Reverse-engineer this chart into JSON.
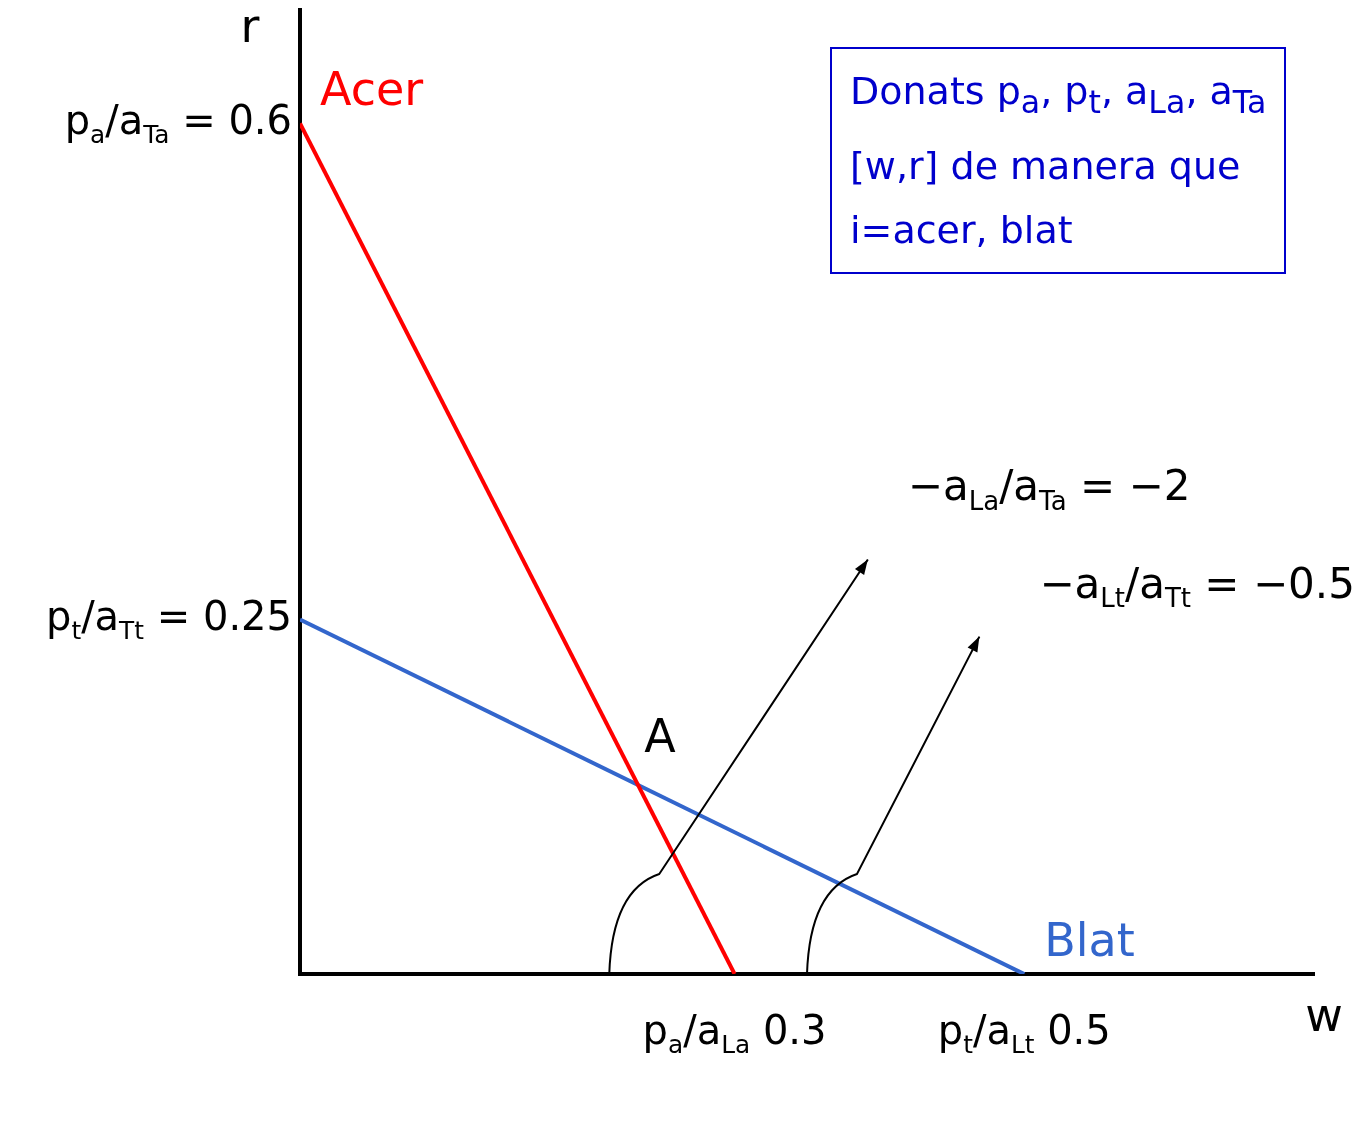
{
  "chart_data": {
    "type": "line",
    "xlabel": "w",
    "ylabel": "r",
    "series": [
      {
        "name": "Acer",
        "color": "#ff0000",
        "x": [
          0,
          0.3
        ],
        "values": [
          0.6,
          0
        ]
      },
      {
        "name": "Blat",
        "color": "#3366cc",
        "x": [
          0,
          0.5
        ],
        "values": [
          0.25,
          0
        ]
      }
    ],
    "xlim": [
      0,
      0.7
    ],
    "ylim": [
      0,
      0.68
    ],
    "xticks": [
      {
        "value": 0.3,
        "label": "p$_{a}$/a$_{La}$ 0.3"
      },
      {
        "value": 0.5,
        "label": "p$_{t}$/a$_{Lt}$ 0.5"
      }
    ],
    "yticks": [
      {
        "value": 0.25,
        "label": "p$_{t}$/a$_{Tt}$ = 0.25"
      },
      {
        "value": 0.6,
        "label": "p$_{a}$/a$_{Ta}$ = 0.6"
      }
    ],
    "annotations": [
      {
        "text": "A",
        "x": 0.2333,
        "y": 0.1333
      },
      "−a$_{La}$/a$_{Ta}$ = −2",
      "−a$_{Lt}$/a$_{Tt}$ = −0.5",
      "Donats p$_{a}$, p$_{t}$, a$_{La}$, a$_{Ta}$\n[w,r] de manera que\ni=acer, blat"
    ],
    "grid": false,
    "legend": false
  }
}
